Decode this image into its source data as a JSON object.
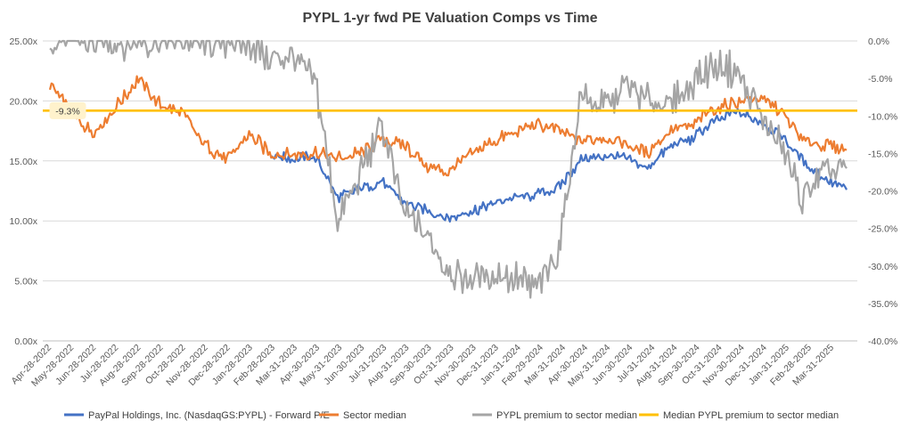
{
  "chart_data": {
    "type": "line",
    "title": "PYPL 1-yr fwd PE Valuation Comps vs Time",
    "y_left": {
      "range": [
        0,
        25
      ],
      "ticks": [
        0,
        5,
        10,
        15,
        20,
        25
      ],
      "tick_labels": [
        "0.00x",
        "5.00x",
        "10.00x",
        "15.00x",
        "20.00x",
        "25.00x"
      ]
    },
    "y_right": {
      "range": [
        -40,
        0
      ],
      "ticks": [
        0,
        -5,
        -10,
        -15,
        -20,
        -25,
        -30,
        -35,
        -40
      ],
      "tick_labels": [
        "0.0%",
        "-5.0%",
        "-10.0%",
        "-15.0%",
        "-20.0%",
        "-25.0%",
        "-30.0%",
        "-35.0%",
        "-40.0%"
      ]
    },
    "x_tick_labels": [
      "Apr-28-2022",
      "May-28-2022",
      "Jun-28-2022",
      "Jul-28-2022",
      "Aug-28-2022",
      "Sep-28-2022",
      "Oct-28-2022",
      "Nov-28-2022",
      "Dec-28-2022",
      "Jan-28-2023",
      "Feb-28-2023",
      "Mar-31-2023",
      "Apr-30-2023",
      "May-31-2023",
      "Jun-30-2023",
      "Jul-31-2023",
      "Aug-31-2023",
      "Sep-30-2023",
      "Oct-31-2023",
      "Nov-30-2023",
      "Dec-31-2023",
      "Jan-31-2024",
      "Feb-29-2024",
      "Mar-31-2024",
      "Apr-30-2024",
      "May-31-2024",
      "Jun-30-2024",
      "Jul-31-2024",
      "Aug-31-2024",
      "Sep-30-2024",
      "Oct-31-2024",
      "Nov-30-2024",
      "Dec-31-2024",
      "Jan-31-2025",
      "Feb-28-2025",
      "Mar-31-2025"
    ],
    "x": [
      "Apr-2022",
      "May-2022",
      "Jun-2022",
      "Jul-2022",
      "Aug-2022",
      "Sep-2022",
      "Oct-2022",
      "Nov-2022",
      "Dec-2022",
      "Jan-2023",
      "Feb-2023",
      "Mar-2023",
      "Apr-2023",
      "May-2023",
      "Jun-2023",
      "Jul-2023",
      "Aug-2023",
      "Sep-2023",
      "Oct-2023",
      "Nov-2023",
      "Dec-2023",
      "Jan-2024",
      "Feb-2024",
      "Mar-2024",
      "Apr-2024",
      "May-2024",
      "Jun-2024",
      "Jul-2024",
      "Aug-2024",
      "Sep-2024",
      "Oct-2024",
      "Nov-2024",
      "Dec-2024",
      "Jan-2025",
      "Feb-2025",
      "Mar-2025",
      "Apr-2025"
    ],
    "series": [
      {
        "name": "PayPal Holdings, Inc. (NasdaqGS:PYPL) - Forward P/E",
        "axis": "left",
        "color": "#4472C4",
        "values": [
          null,
          null,
          null,
          null,
          null,
          null,
          null,
          null,
          null,
          null,
          15.5,
          15.2,
          15.3,
          12.0,
          12.6,
          13.3,
          11.5,
          10.9,
          10.2,
          10.8,
          11.4,
          11.9,
          12.2,
          12.8,
          15.1,
          15.4,
          15.3,
          14.4,
          16.2,
          16.8,
          18.3,
          19.1,
          18.4,
          17.2,
          15.0,
          13.5,
          12.6
        ]
      },
      {
        "name": "Sector median",
        "axis": "left",
        "color": "#ED7D31",
        "values": [
          21.4,
          19.0,
          17.3,
          19.5,
          21.8,
          19.7,
          18.9,
          16.4,
          15.1,
          17.2,
          15.6,
          15.5,
          15.7,
          15.2,
          15.6,
          16.8,
          16.4,
          14.6,
          14.1,
          15.5,
          16.6,
          17.3,
          18.1,
          17.5,
          16.7,
          16.9,
          16.5,
          15.6,
          17.5,
          17.9,
          19.3,
          19.9,
          20.3,
          19.3,
          16.7,
          16.3,
          15.9
        ]
      },
      {
        "name": "PYPL premium to sector median",
        "axis": "right",
        "color": "#A5A5A5",
        "values": [
          0.0,
          0.0,
          0.0,
          0.0,
          0.0,
          0.0,
          0.0,
          0.0,
          0.0,
          0.0,
          -2.5,
          -2.0,
          -5.5,
          -24.0,
          -18.0,
          -11.0,
          -23.0,
          -26.0,
          -30.5,
          -32.0,
          -31.0,
          -31.5,
          -33.5,
          -28.0,
          -7.0,
          -9.0,
          -6.0,
          -8.0,
          -8.5,
          -5.5,
          -3.0,
          -4.0,
          -9.0,
          -14.0,
          -21.0,
          -17.5,
          -17.0
        ]
      },
      {
        "name": "Median PYPL premium to sector median",
        "axis": "right",
        "color": "#FFC000",
        "values": [
          -9.3,
          -9.3,
          -9.3,
          -9.3,
          -9.3,
          -9.3,
          -9.3,
          -9.3,
          -9.3,
          -9.3,
          -9.3,
          -9.3,
          -9.3,
          -9.3,
          -9.3,
          -9.3,
          -9.3,
          -9.3,
          -9.3,
          -9.3,
          -9.3,
          -9.3,
          -9.3,
          -9.3,
          -9.3,
          -9.3,
          -9.3,
          -9.3,
          -9.3,
          -9.3,
          -9.3,
          -9.3,
          -9.3,
          -9.3,
          -9.3,
          -9.3,
          -9.3
        ]
      }
    ],
    "annotation": {
      "label": "-9.3%",
      "series": "Median PYPL premium to sector median",
      "value": -9.3
    },
    "grid": true,
    "legend_position": "bottom"
  }
}
